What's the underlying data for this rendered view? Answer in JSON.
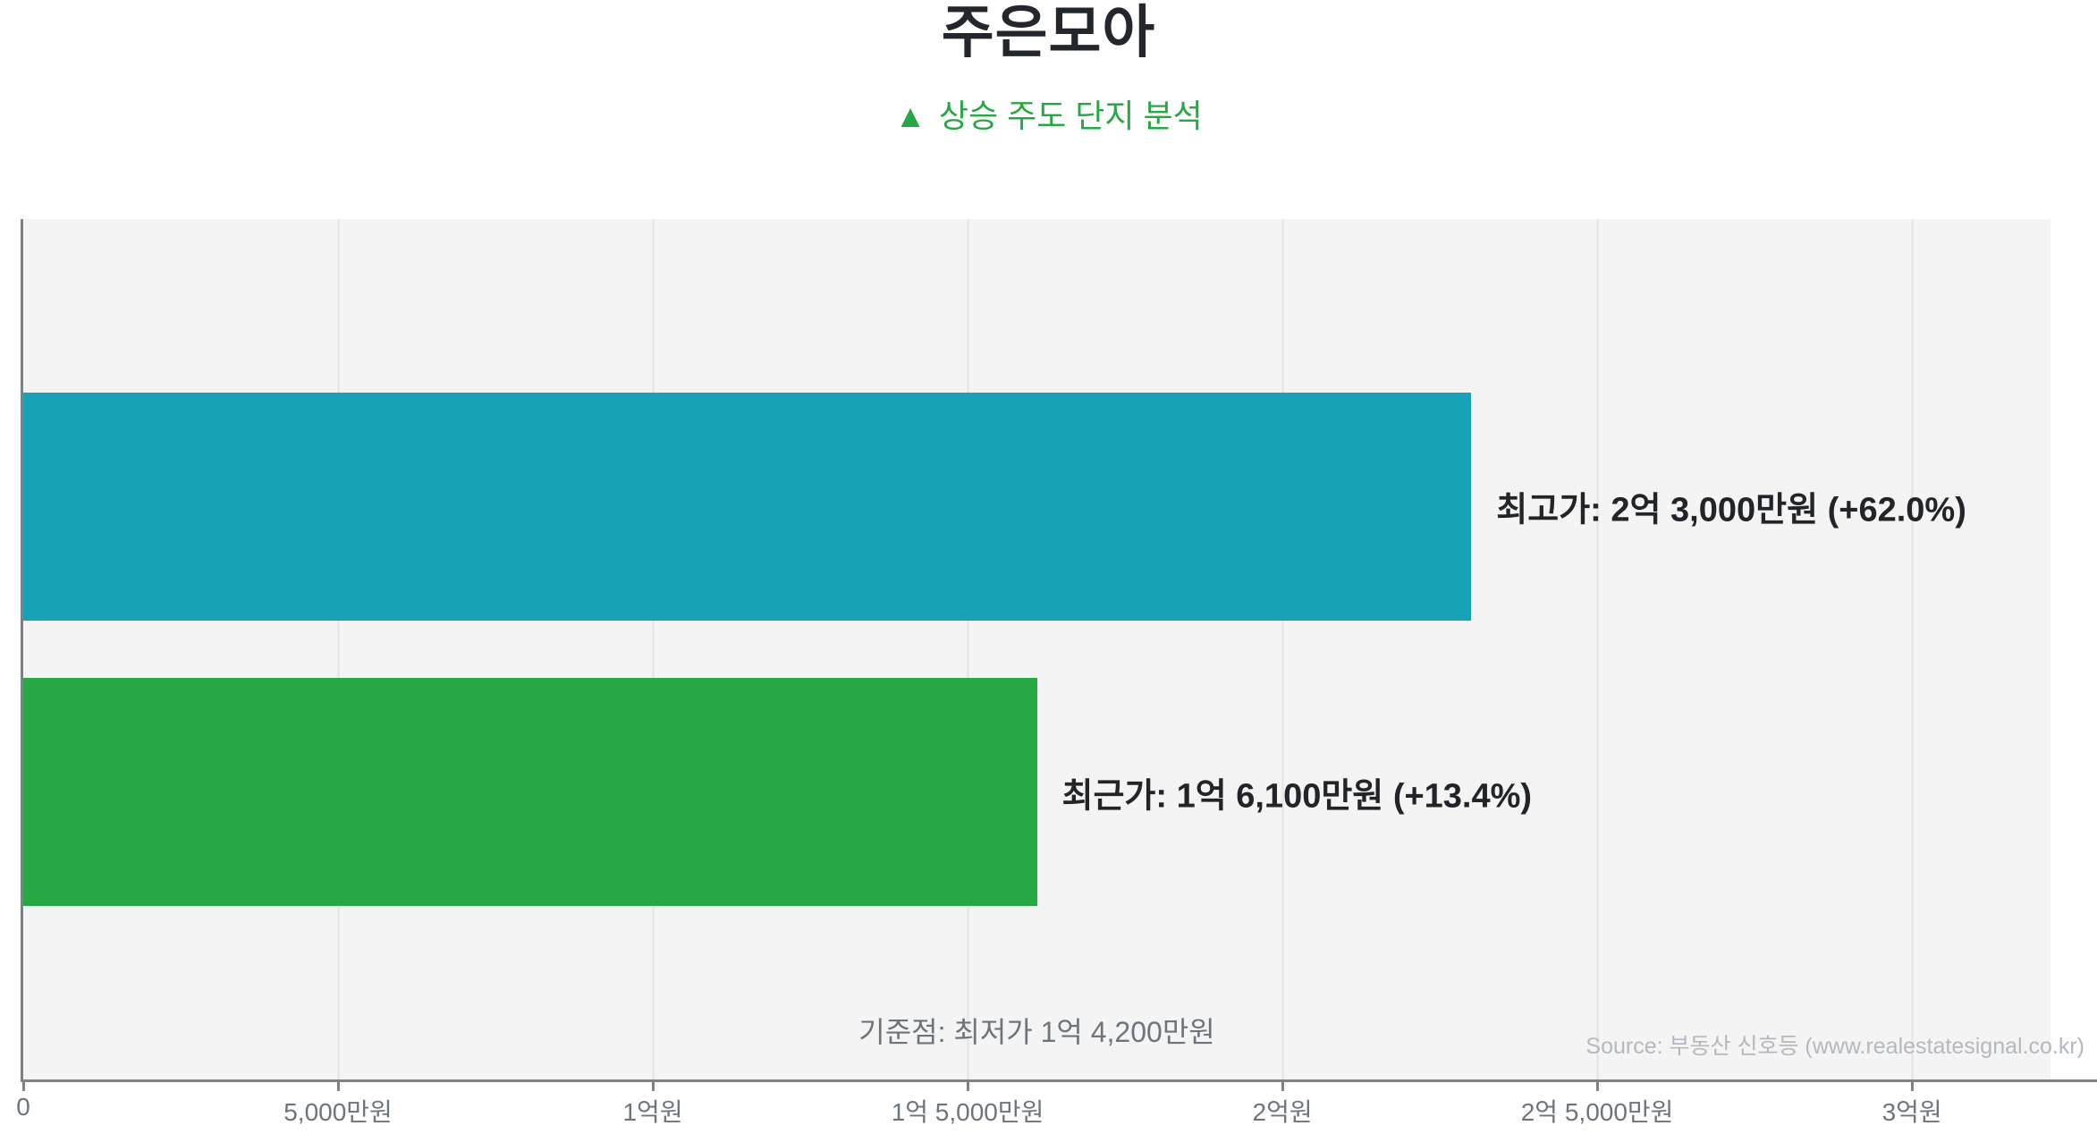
{
  "header": {
    "title": "주은모아",
    "subtitle_marker": "▲",
    "subtitle_text": "상승 주도 단지 분석"
  },
  "chart_data": {
    "type": "bar",
    "orientation": "horizontal",
    "title": "주은모아",
    "subtitle": "▲ 상승 주도 단지 분석",
    "unit": "만원",
    "categories": [
      "최고가",
      "최근가"
    ],
    "series": [
      {
        "name": "최고가",
        "value_manwon": 23000,
        "display_value": "2억 3,000만원",
        "change_pct": "+62.0%",
        "label": "최고가: 2억 3,000만원 (+62.0%)",
        "color": "#17a2b8"
      },
      {
        "name": "최근가",
        "value_manwon": 16100,
        "display_value": "1억 6,100만원",
        "change_pct": "+13.4%",
        "label": "최근가: 1억 6,100만원 (+13.4%)",
        "color": "#28a745"
      }
    ],
    "baseline_note": "기준점: 최저가 1억 4,200만원",
    "baseline_value_manwon": 14200,
    "x_axis": {
      "max_manwon": 32200,
      "ticks": [
        {
          "value": 0,
          "label": "0"
        },
        {
          "value": 5000,
          "label": "5,000만원"
        },
        {
          "value": 10000,
          "label": "1억원"
        },
        {
          "value": 15000,
          "label": "1억 5,000만원"
        },
        {
          "value": 20000,
          "label": "2억원"
        },
        {
          "value": 25000,
          "label": "2억 5,000만원"
        },
        {
          "value": 30000,
          "label": "3억원"
        }
      ]
    },
    "grid": true,
    "legend": false,
    "plot_background": "#f4f4f4"
  },
  "footer": {
    "source": "Source: 부동산 신호등 (www.realestatesignal.co.kr)"
  },
  "colors": {
    "bar_peak": "#17a2b8",
    "bar_recent": "#28a745",
    "accent_green": "#28a745",
    "title_text": "#23272d",
    "label_text": "#212529",
    "axis": "#7d828a",
    "tick_label": "#6c757d",
    "muted_note": "#6c757d",
    "source_text": "#b3b9bf",
    "gridline": "#e9e9e9",
    "plot_bg": "#f4f4f4"
  }
}
